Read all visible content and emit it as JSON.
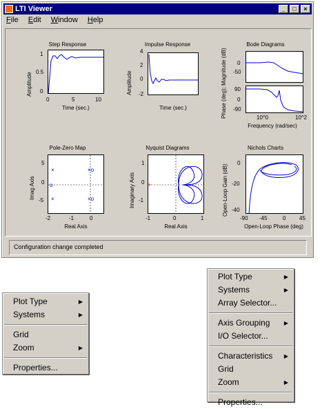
{
  "window": {
    "title": "LTI Viewer",
    "buttons": {
      "minimize": "_",
      "maximize": "□",
      "close": "×"
    }
  },
  "menubar": [
    "File",
    "Edit",
    "Window",
    "Help"
  ],
  "plots": {
    "step": {
      "title": "Step Response",
      "ylabel": "Amplitude",
      "xlabel": "Time (sec.)",
      "yticks": [
        "1",
        "0.5",
        "0"
      ],
      "xticks": [
        "0",
        "5",
        "10"
      ]
    },
    "impulse": {
      "title": "Impulse Response",
      "ylabel": "Amplitude",
      "xlabel": "Time (sec.)",
      "yticks": [
        "4",
        "2",
        "0",
        "-2"
      ]
    },
    "bode": {
      "title": "Bode Diagrams",
      "ylabel": "Phase (deg); Magnitude (dB)",
      "xlabel": "Frequency (rad/sec)",
      "yticks_mag": [
        "0",
        "-50"
      ],
      "yticks_phase": [
        "90",
        "0",
        "-90"
      ],
      "xticks": [
        "10^0",
        "10^2"
      ]
    },
    "pz": {
      "title": "Pole-Zero Map",
      "ylabel": "Imag Axis",
      "xlabel": "Real Axis",
      "yticks": [
        "5",
        "0",
        "-5"
      ],
      "xticks": [
        "-2",
        "-1",
        "0"
      ]
    },
    "nyquist": {
      "title": "Nyquist Diagrams",
      "ylabel": "Imaginary Axis",
      "xlabel": "Real Axis",
      "yticks": [
        "1",
        "0",
        "-1"
      ],
      "xticks": [
        "-1",
        "0",
        "1"
      ]
    },
    "nichols": {
      "title": "Nichols Charts",
      "ylabel": "Open-Loop Gain (dB)",
      "xlabel": "Open-Loop Phase (deg)",
      "yticks": [
        "0",
        "-20",
        "-40"
      ],
      "xticks": [
        "-90",
        "-45",
        "0",
        "45"
      ]
    }
  },
  "status": "Configuration change completed",
  "menu_left": [
    {
      "label": "Plot Type",
      "arrow": "▶"
    },
    {
      "label": "Systems",
      "arrow": "▶"
    },
    {
      "sep": true
    },
    {
      "label": "Grid"
    },
    {
      "label": "Zoom",
      "arrow": "▶"
    },
    {
      "sep": true
    },
    {
      "label": "Properties..."
    }
  ],
  "menu_right": [
    {
      "label": "Plot Type",
      "arrow": "▶"
    },
    {
      "label": "Systems",
      "arrow": "▶"
    },
    {
      "label": "Array Selector..."
    },
    {
      "sep": true
    },
    {
      "label": "Axis Grouping",
      "arrow": "▶"
    },
    {
      "label": "I/O Selector..."
    },
    {
      "sep": true
    },
    {
      "label": "Characteristics",
      "arrow": "▶"
    },
    {
      "label": "Grid"
    },
    {
      "label": "Zoom",
      "arrow": "▶"
    },
    {
      "sep": true
    },
    {
      "label": "Properties..."
    }
  ],
  "colors": {
    "titlebar": "#000080",
    "curve": "#0000cc",
    "face": "#d4d0c8"
  }
}
